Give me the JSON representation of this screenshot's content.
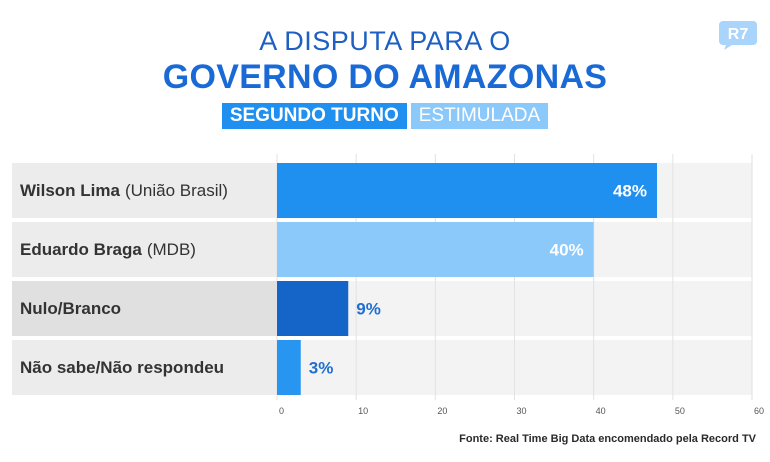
{
  "header": {
    "title_line1": "A DISPUTA PARA O",
    "title_line2": "GOVERNO DO AMAZONAS",
    "tag_primary": "SEGUNDO TURNO",
    "tag_secondary": "ESTIMULADA",
    "logo_text": "R7"
  },
  "rows": [
    {
      "name": "Wilson Lima",
      "party": "(União Brasil)"
    },
    {
      "name": "Eduardo Braga",
      "party": "(MDB)"
    },
    {
      "name": "Nulo/Branco",
      "party": ""
    },
    {
      "name": "Não sabe/Não respondeu",
      "party": ""
    }
  ],
  "chart_data": {
    "type": "bar",
    "orientation": "horizontal",
    "categories": [
      "Wilson Lima (União Brasil)",
      "Eduardo Braga (MDB)",
      "Nulo/Branco",
      "Não sabe/Não respondeu"
    ],
    "values": [
      48,
      40,
      9,
      3
    ],
    "value_labels": [
      "48%",
      "40%",
      "9%",
      "3%"
    ],
    "bar_colors": [
      "#1f8ff0",
      "#8cc9fb",
      "#1565c8",
      "#2895f0"
    ],
    "xlim": [
      0,
      60
    ],
    "xticks": [
      "0",
      "10",
      "20",
      "30",
      "40",
      "50",
      "60"
    ],
    "grid": true
  },
  "footer": {
    "source": "Fonte: Real Time Big Data encomendado pela Record TV"
  }
}
